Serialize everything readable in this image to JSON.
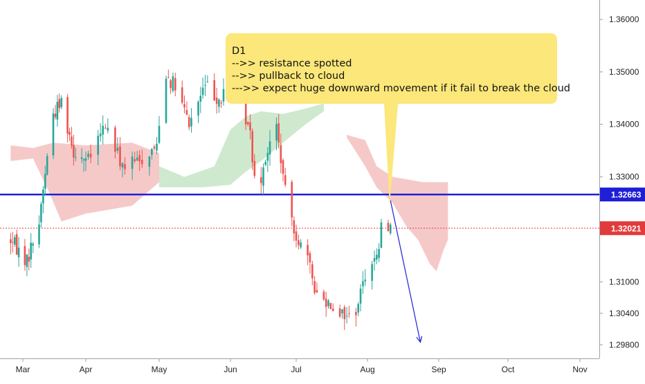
{
  "chart_data": {
    "type": "candlestick",
    "x_ticks": [
      "Mar",
      "Apr",
      "May",
      "Jun",
      "Jul",
      "Aug",
      "Sep",
      "Oct",
      "Nov"
    ],
    "y_ticks": [
      "1.36000",
      "1.35000",
      "1.34000",
      "1.33000",
      "1.31000",
      "1.30400",
      "1.29800"
    ],
    "ylim": [
      1.2954,
      1.3637
    ],
    "grid": false,
    "price_labels": [
      {
        "name": "resistance",
        "value": 1.32663,
        "text": "1.32663",
        "color": "#1f1fd6"
      },
      {
        "name": "last-price",
        "value": 1.32021,
        "text": "1.32021",
        "color": "#e23b3b"
      }
    ],
    "annotation": {
      "lines": [
        "D1",
        "-->> resistance spotted",
        "-->> pullback to cloud",
        "--->> expect huge downward movement if it fail to break the cloud"
      ],
      "color": "#fbe77a"
    },
    "projection": {
      "from": {
        "date": "2020-08-11",
        "price": 1.3255
      },
      "to": {
        "date": "2020-08-24",
        "price": 1.2985
      },
      "color": "#2d2dd8"
    },
    "anchor_dates": {
      "Mar": "2020-03-01",
      "Apr": "2020-04-01",
      "May": "2020-05-01",
      "Jun": "2020-06-01",
      "Jul": "2020-07-01",
      "Aug": "2020-08-01",
      "Sep": "2020-09-01",
      "Oct": "2020-10-01",
      "Nov": "2020-11-01"
    },
    "price_path": [
      [
        "2020-02-24",
        1.318
      ],
      [
        "2020-03-03",
        1.314
      ],
      [
        "2020-03-09",
        1.3215
      ],
      [
        "2020-03-12",
        1.331
      ],
      [
        "2020-03-16",
        1.342
      ],
      [
        "2020-03-20",
        1.3445
      ],
      [
        "2020-03-26",
        1.335
      ],
      [
        "2020-04-02",
        1.333
      ],
      [
        "2020-04-09",
        1.34
      ],
      [
        "2020-04-16",
        1.332
      ],
      [
        "2020-04-23",
        1.333
      ],
      [
        "2020-04-30",
        1.336
      ],
      [
        "2020-05-03",
        1.3505
      ],
      [
        "2020-05-08",
        1.347
      ],
      [
        "2020-05-14",
        1.34
      ],
      [
        "2020-05-21",
        1.3475
      ],
      [
        "2020-05-28",
        1.3445
      ],
      [
        "2020-06-02",
        1.3515
      ],
      [
        "2020-06-05",
        1.346
      ],
      [
        "2020-06-10",
        1.338
      ],
      [
        "2020-06-13",
        1.3265
      ],
      [
        "2020-06-17",
        1.334
      ],
      [
        "2020-06-22",
        1.3395
      ],
      [
        "2020-06-26",
        1.327
      ],
      [
        "2020-07-01",
        1.319
      ],
      [
        "2020-07-06",
        1.314
      ],
      [
        "2020-07-10",
        1.3075
      ],
      [
        "2020-07-16",
        1.306
      ],
      [
        "2020-07-21",
        1.304
      ],
      [
        "2020-07-26",
        1.303
      ],
      [
        "2020-07-31",
        1.3115
      ],
      [
        "2020-08-03",
        1.3145
      ],
      [
        "2020-08-05",
        1.314
      ],
      [
        "2020-08-08",
        1.323
      ],
      [
        "2020-08-11",
        1.3202
      ]
    ],
    "kumo": [
      {
        "color": "#f6c9c9",
        "upper": [
          [
            "2020-02-24",
            1.336
          ],
          [
            "2020-03-06",
            1.3355
          ],
          [
            "2020-03-16",
            1.3365
          ],
          [
            "2020-04-01",
            1.336
          ],
          [
            "2020-04-20",
            1.3365
          ],
          [
            "2020-05-01",
            1.3345
          ]
        ],
        "lower": [
          [
            "2020-02-24",
            1.333
          ],
          [
            "2020-03-06",
            1.3335
          ],
          [
            "2020-03-14",
            1.327
          ],
          [
            "2020-03-20",
            1.3215
          ],
          [
            "2020-04-01",
            1.323
          ],
          [
            "2020-04-20",
            1.3245
          ],
          [
            "2020-05-01",
            1.329
          ]
        ]
      },
      {
        "color": "#cfe9cf",
        "upper": [
          [
            "2020-05-01",
            1.332
          ],
          [
            "2020-05-12",
            1.33
          ],
          [
            "2020-05-25",
            1.332
          ],
          [
            "2020-06-01",
            1.339
          ],
          [
            "2020-06-08",
            1.3415
          ],
          [
            "2020-06-15",
            1.3425
          ],
          [
            "2020-06-25",
            1.342
          ],
          [
            "2020-07-05",
            1.343
          ],
          [
            "2020-07-13",
            1.344
          ]
        ],
        "lower": [
          [
            "2020-05-01",
            1.328
          ],
          [
            "2020-05-20",
            1.328
          ],
          [
            "2020-06-01",
            1.3285
          ],
          [
            "2020-06-08",
            1.331
          ],
          [
            "2020-06-15",
            1.333
          ],
          [
            "2020-06-25",
            1.3365
          ],
          [
            "2020-07-05",
            1.34
          ],
          [
            "2020-07-13",
            1.3425
          ]
        ]
      },
      {
        "color": "#f6c9c9",
        "upper": [
          [
            "2020-07-23",
            1.338
          ],
          [
            "2020-07-31",
            1.337
          ],
          [
            "2020-08-05",
            1.332
          ],
          [
            "2020-08-12",
            1.33
          ],
          [
            "2020-08-25",
            1.329
          ],
          [
            "2020-09-05",
            1.329
          ]
        ],
        "lower": [
          [
            "2020-07-23",
            1.3375
          ],
          [
            "2020-07-31",
            1.332
          ],
          [
            "2020-08-05",
            1.328
          ],
          [
            "2020-08-12",
            1.325
          ],
          [
            "2020-08-18",
            1.3205
          ],
          [
            "2020-08-23",
            1.318
          ],
          [
            "2020-08-28",
            1.3135
          ],
          [
            "2020-08-31",
            1.312
          ],
          [
            "2020-09-03",
            1.316
          ],
          [
            "2020-09-05",
            1.318
          ]
        ]
      }
    ]
  }
}
